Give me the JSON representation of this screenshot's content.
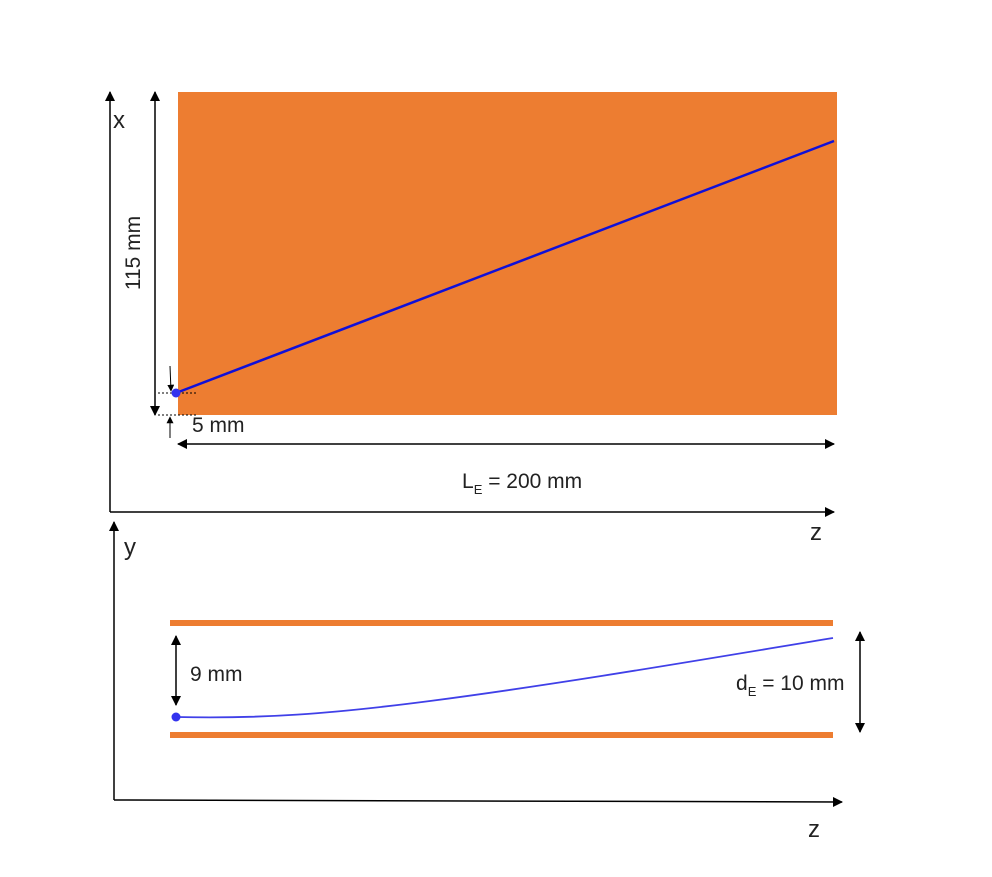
{
  "colors": {
    "plate": "#ED7D31",
    "trajectory": "#1010D8",
    "trajectory_side": "#4040E8",
    "start_dot": "#3333EE",
    "axis": "#000000"
  },
  "top_view": {
    "axis_vertical": "x",
    "axis_horizontal": "z",
    "height_label": "115 mm",
    "offset_label": "5 mm",
    "length_label_main": "L",
    "length_label_sub": "E",
    "length_label_value": " = 200 mm"
  },
  "side_view": {
    "axis_vertical": "y",
    "axis_horizontal": "z",
    "start_gap_label": "9 mm",
    "gap_label_main": "d",
    "gap_label_sub": "E",
    "gap_label_value": " = 10 mm"
  }
}
